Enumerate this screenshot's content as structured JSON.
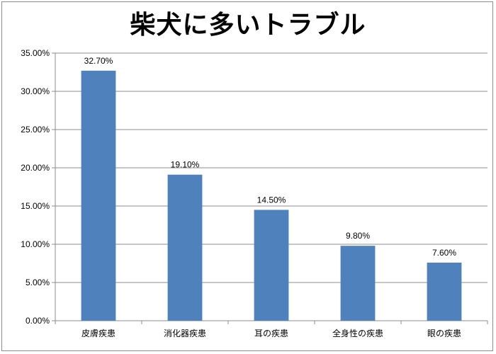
{
  "chart_data": {
    "type": "bar",
    "title": "柴犬に多いトラブル",
    "categories": [
      "皮膚疾患",
      "消化器疾患",
      "耳の疾患",
      "全身性の疾患",
      "眼の疾患"
    ],
    "values": [
      32.7,
      19.1,
      14.5,
      9.8,
      7.6
    ],
    "data_labels": [
      "32.70%",
      "19.10%",
      "14.50%",
      "9.80%",
      "7.60%"
    ],
    "y_ticks": [
      "0.00%",
      "5.00%",
      "10.00%",
      "15.00%",
      "20.00%",
      "25.00%",
      "30.00%",
      "35.00%"
    ],
    "ylim": [
      0,
      35
    ],
    "grid": true,
    "legend": "none",
    "bar_color": "#4f81bd",
    "grid_color": "#8c8c8c"
  }
}
